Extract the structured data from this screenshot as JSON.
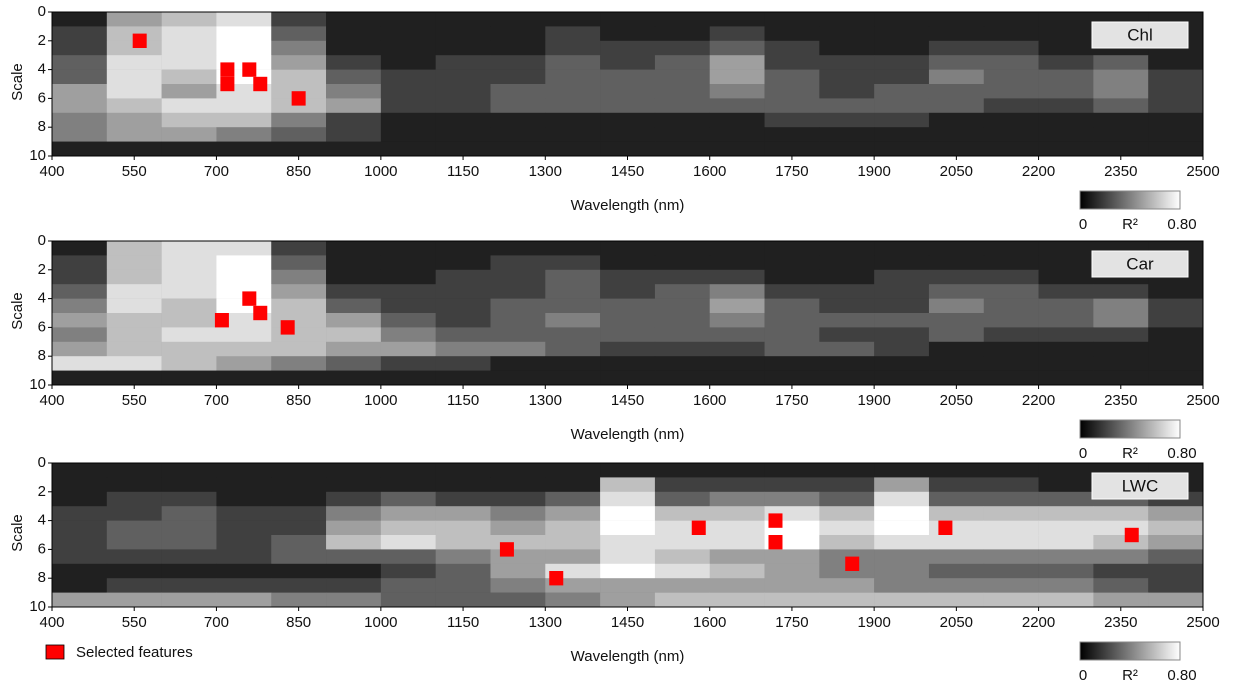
{
  "chart_data": [
    {
      "type": "heatmap",
      "label": "Chl",
      "xlabel": "Wavelength (nm)",
      "ylabel": "Scale",
      "xlim": [
        400,
        2500
      ],
      "ylim": [
        10,
        0
      ],
      "xticks": [
        400,
        550,
        700,
        850,
        1000,
        1150,
        1300,
        1450,
        1600,
        1750,
        1900,
        2050,
        2200,
        2350,
        2500
      ],
      "yticks": [
        0,
        2,
        4,
        6,
        8,
        10
      ],
      "xbins": [
        400,
        500,
        600,
        700,
        800,
        900,
        1000,
        1100,
        1200,
        1300,
        1400,
        1500,
        1600,
        1700,
        1800,
        1900,
        2000,
        2100,
        2200,
        2300,
        2400,
        2500
      ],
      "ybins": [
        0,
        1,
        2,
        3,
        4,
        5,
        6,
        7,
        8,
        9,
        10
      ],
      "values": [
        [
          0.1,
          0.5,
          0.6,
          0.7,
          0.2,
          0.1,
          0.1,
          0.1,
          0.1,
          0.1,
          0.1,
          0.1,
          0.1,
          0.1,
          0.1,
          0.1,
          0.1,
          0.1,
          0.1,
          0.1,
          0.1
        ],
        [
          0.2,
          0.6,
          0.7,
          0.8,
          0.3,
          0.1,
          0.1,
          0.1,
          0.1,
          0.2,
          0.1,
          0.1,
          0.2,
          0.1,
          0.1,
          0.1,
          0.1,
          0.1,
          0.1,
          0.1,
          0.1
        ],
        [
          0.2,
          0.6,
          0.7,
          0.8,
          0.4,
          0.1,
          0.1,
          0.1,
          0.1,
          0.2,
          0.2,
          0.2,
          0.3,
          0.2,
          0.1,
          0.1,
          0.2,
          0.2,
          0.1,
          0.1,
          0.1
        ],
        [
          0.3,
          0.7,
          0.7,
          0.8,
          0.5,
          0.2,
          0.1,
          0.2,
          0.2,
          0.3,
          0.2,
          0.3,
          0.5,
          0.2,
          0.2,
          0.2,
          0.3,
          0.3,
          0.2,
          0.3,
          0.1
        ],
        [
          0.3,
          0.7,
          0.6,
          0.8,
          0.6,
          0.3,
          0.2,
          0.2,
          0.2,
          0.3,
          0.3,
          0.3,
          0.5,
          0.3,
          0.2,
          0.2,
          0.4,
          0.3,
          0.3,
          0.4,
          0.2
        ],
        [
          0.5,
          0.7,
          0.5,
          0.7,
          0.6,
          0.4,
          0.2,
          0.2,
          0.3,
          0.3,
          0.3,
          0.3,
          0.4,
          0.3,
          0.2,
          0.3,
          0.3,
          0.3,
          0.3,
          0.4,
          0.2
        ],
        [
          0.5,
          0.6,
          0.7,
          0.7,
          0.6,
          0.5,
          0.2,
          0.2,
          0.3,
          0.3,
          0.3,
          0.3,
          0.3,
          0.3,
          0.3,
          0.3,
          0.3,
          0.2,
          0.2,
          0.3,
          0.2
        ],
        [
          0.4,
          0.5,
          0.6,
          0.6,
          0.4,
          0.2,
          0.1,
          0.1,
          0.1,
          0.1,
          0.1,
          0.1,
          0.1,
          0.2,
          0.2,
          0.2,
          0.1,
          0.1,
          0.1,
          0.1,
          0.1
        ],
        [
          0.4,
          0.5,
          0.5,
          0.4,
          0.3,
          0.2,
          0.1,
          0.1,
          0.1,
          0.1,
          0.1,
          0.1,
          0.1,
          0.1,
          0.1,
          0.1,
          0.1,
          0.1,
          0.1,
          0.1,
          0.1
        ],
        [
          0.1,
          0.1,
          0.1,
          0.1,
          0.1,
          0.1,
          0.1,
          0.1,
          0.1,
          0.1,
          0.1,
          0.1,
          0.1,
          0.1,
          0.1,
          0.1,
          0.1,
          0.1,
          0.1,
          0.1,
          0.1
        ]
      ],
      "colorbar": {
        "label": "R²",
        "range": [
          0,
          0.8
        ],
        "ticks": [
          0,
          {
            "value": 0.8,
            "label": "0.80"
          }
        ]
      },
      "selected": {
        "color": "#ff0000",
        "x": [
          560,
          720,
          720,
          760,
          780,
          850
        ],
        "y": [
          2,
          4,
          5,
          4,
          5,
          6
        ]
      }
    },
    {
      "type": "heatmap",
      "label": "Car",
      "xlabel": "Wavelength (nm)",
      "ylabel": "Scale",
      "xlim": [
        400,
        2500
      ],
      "ylim": [
        10,
        0
      ],
      "xticks": [
        400,
        550,
        700,
        850,
        1000,
        1150,
        1300,
        1450,
        1600,
        1750,
        1900,
        2050,
        2200,
        2350,
        2500
      ],
      "yticks": [
        0,
        2,
        4,
        6,
        8,
        10
      ],
      "xbins": [
        400,
        500,
        600,
        700,
        800,
        900,
        1000,
        1100,
        1200,
        1300,
        1400,
        1500,
        1600,
        1700,
        1800,
        1900,
        2000,
        2100,
        2200,
        2300,
        2400,
        2500
      ],
      "ybins": [
        0,
        1,
        2,
        3,
        4,
        5,
        6,
        7,
        8,
        9,
        10
      ],
      "values": [
        [
          0.1,
          0.6,
          0.7,
          0.7,
          0.2,
          0.1,
          0.1,
          0.1,
          0.1,
          0.1,
          0.1,
          0.1,
          0.1,
          0.1,
          0.1,
          0.1,
          0.1,
          0.1,
          0.1,
          0.1,
          0.1
        ],
        [
          0.2,
          0.6,
          0.7,
          0.8,
          0.3,
          0.1,
          0.1,
          0.1,
          0.2,
          0.2,
          0.1,
          0.1,
          0.1,
          0.1,
          0.1,
          0.1,
          0.1,
          0.1,
          0.1,
          0.1,
          0.1
        ],
        [
          0.2,
          0.6,
          0.7,
          0.8,
          0.4,
          0.1,
          0.1,
          0.2,
          0.2,
          0.3,
          0.2,
          0.2,
          0.2,
          0.1,
          0.1,
          0.2,
          0.2,
          0.2,
          0.1,
          0.1,
          0.1
        ],
        [
          0.3,
          0.7,
          0.7,
          0.8,
          0.5,
          0.2,
          0.2,
          0.2,
          0.2,
          0.3,
          0.2,
          0.3,
          0.4,
          0.2,
          0.2,
          0.2,
          0.3,
          0.3,
          0.2,
          0.2,
          0.1
        ],
        [
          0.4,
          0.7,
          0.6,
          0.8,
          0.6,
          0.3,
          0.2,
          0.2,
          0.3,
          0.3,
          0.3,
          0.3,
          0.5,
          0.3,
          0.2,
          0.2,
          0.4,
          0.3,
          0.3,
          0.4,
          0.2
        ],
        [
          0.5,
          0.6,
          0.6,
          0.7,
          0.6,
          0.5,
          0.3,
          0.2,
          0.3,
          0.4,
          0.3,
          0.3,
          0.4,
          0.3,
          0.3,
          0.3,
          0.3,
          0.3,
          0.3,
          0.4,
          0.2
        ],
        [
          0.4,
          0.6,
          0.7,
          0.7,
          0.6,
          0.6,
          0.4,
          0.3,
          0.3,
          0.3,
          0.3,
          0.3,
          0.3,
          0.3,
          0.2,
          0.2,
          0.3,
          0.2,
          0.2,
          0.2,
          0.1
        ],
        [
          0.5,
          0.6,
          0.6,
          0.6,
          0.6,
          0.5,
          0.5,
          0.4,
          0.4,
          0.3,
          0.2,
          0.2,
          0.2,
          0.3,
          0.3,
          0.2,
          0.1,
          0.1,
          0.1,
          0.1,
          0.1
        ],
        [
          0.7,
          0.7,
          0.6,
          0.5,
          0.4,
          0.3,
          0.2,
          0.2,
          0.1,
          0.1,
          0.1,
          0.1,
          0.1,
          0.1,
          0.1,
          0.1,
          0.1,
          0.1,
          0.1,
          0.1,
          0.1
        ],
        [
          0.1,
          0.1,
          0.1,
          0.1,
          0.1,
          0.1,
          0.1,
          0.1,
          0.1,
          0.1,
          0.1,
          0.1,
          0.1,
          0.1,
          0.1,
          0.1,
          0.1,
          0.1,
          0.1,
          0.1,
          0.1
        ]
      ],
      "colorbar": {
        "label": "R²",
        "range": [
          0,
          0.8
        ],
        "ticks": [
          0,
          {
            "value": 0.8,
            "label": "0.80"
          }
        ]
      },
      "selected": {
        "color": "#ff0000",
        "x": [
          760,
          780,
          710,
          830
        ],
        "y": [
          4,
          5,
          5.5,
          6
        ]
      }
    },
    {
      "type": "heatmap",
      "label": "LWC",
      "xlabel": "Wavelength (nm)",
      "ylabel": "Scale",
      "xlim": [
        400,
        2500
      ],
      "ylim": [
        10,
        0
      ],
      "xticks": [
        400,
        550,
        700,
        850,
        1000,
        1150,
        1300,
        1450,
        1600,
        1750,
        1900,
        2050,
        2200,
        2350,
        2500
      ],
      "yticks": [
        0,
        2,
        4,
        6,
        8,
        10
      ],
      "xbins": [
        400,
        500,
        600,
        700,
        800,
        900,
        1000,
        1100,
        1200,
        1300,
        1400,
        1500,
        1600,
        1700,
        1800,
        1900,
        2000,
        2100,
        2200,
        2300,
        2400,
        2500
      ],
      "ybins": [
        0,
        1,
        2,
        3,
        4,
        5,
        6,
        7,
        8,
        9,
        10
      ],
      "values": [
        [
          0.1,
          0.1,
          0.1,
          0.1,
          0.1,
          0.1,
          0.1,
          0.1,
          0.1,
          0.1,
          0.1,
          0.1,
          0.1,
          0.1,
          0.1,
          0.1,
          0.1,
          0.1,
          0.1,
          0.1,
          0.1
        ],
        [
          0.1,
          0.1,
          0.1,
          0.1,
          0.1,
          0.1,
          0.1,
          0.1,
          0.1,
          0.1,
          0.6,
          0.2,
          0.2,
          0.2,
          0.2,
          0.5,
          0.2,
          0.2,
          0.1,
          0.1,
          0.1
        ],
        [
          0.1,
          0.2,
          0.2,
          0.1,
          0.1,
          0.2,
          0.3,
          0.2,
          0.2,
          0.3,
          0.7,
          0.3,
          0.4,
          0.4,
          0.3,
          0.7,
          0.3,
          0.3,
          0.3,
          0.3,
          0.2
        ],
        [
          0.2,
          0.2,
          0.3,
          0.2,
          0.2,
          0.4,
          0.5,
          0.5,
          0.4,
          0.5,
          0.8,
          0.6,
          0.6,
          0.7,
          0.6,
          0.8,
          0.6,
          0.6,
          0.6,
          0.6,
          0.5
        ],
        [
          0.2,
          0.3,
          0.3,
          0.2,
          0.2,
          0.5,
          0.6,
          0.6,
          0.5,
          0.6,
          0.8,
          0.7,
          0.7,
          0.8,
          0.7,
          0.8,
          0.7,
          0.7,
          0.7,
          0.7,
          0.6
        ],
        [
          0.2,
          0.3,
          0.3,
          0.2,
          0.3,
          0.6,
          0.7,
          0.6,
          0.6,
          0.6,
          0.7,
          0.7,
          0.7,
          0.8,
          0.6,
          0.7,
          0.7,
          0.7,
          0.7,
          0.6,
          0.5
        ],
        [
          0.2,
          0.2,
          0.2,
          0.2,
          0.3,
          0.3,
          0.3,
          0.4,
          0.5,
          0.5,
          0.7,
          0.6,
          0.5,
          0.5,
          0.4,
          0.4,
          0.4,
          0.4,
          0.4,
          0.4,
          0.3
        ],
        [
          0.1,
          0.1,
          0.1,
          0.1,
          0.1,
          0.1,
          0.2,
          0.3,
          0.5,
          0.7,
          0.8,
          0.7,
          0.6,
          0.5,
          0.4,
          0.4,
          0.3,
          0.3,
          0.3,
          0.2,
          0.2
        ],
        [
          0.1,
          0.2,
          0.2,
          0.2,
          0.2,
          0.2,
          0.3,
          0.3,
          0.4,
          0.5,
          0.5,
          0.5,
          0.5,
          0.5,
          0.5,
          0.4,
          0.4,
          0.4,
          0.4,
          0.3,
          0.2
        ],
        [
          0.5,
          0.5,
          0.5,
          0.5,
          0.4,
          0.4,
          0.3,
          0.3,
          0.3,
          0.4,
          0.5,
          0.6,
          0.6,
          0.6,
          0.6,
          0.6,
          0.6,
          0.6,
          0.6,
          0.5,
          0.5
        ]
      ],
      "colorbar": {
        "label": "R²",
        "range": [
          0,
          0.8
        ],
        "ticks": [
          0,
          {
            "value": 0.8,
            "label": "0.80"
          }
        ]
      },
      "selected": {
        "name": "Selected features",
        "color": "#ff0000",
        "x": [
          1580,
          1720,
          1720,
          2030,
          2370,
          1860,
          1320,
          1230
        ],
        "y": [
          4.5,
          4,
          5.5,
          4.5,
          5,
          7,
          8,
          6
        ]
      }
    }
  ]
}
